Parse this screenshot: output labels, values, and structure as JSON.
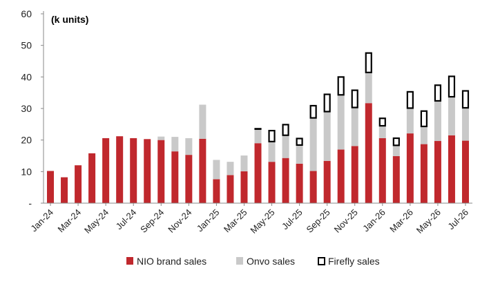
{
  "chart_data": {
    "type": "bar",
    "stacked": true,
    "unit_label": "(k units)",
    "ylim": [
      0,
      60
    ],
    "y_ticks": [
      "-",
      "10",
      "20",
      "30",
      "40",
      "50",
      "60"
    ],
    "grid": false,
    "legend_position": "bottom",
    "categories": [
      "Jan-24",
      "Feb-24",
      "Mar-24",
      "Apr-24",
      "May-24",
      "Jun-24",
      "Jul-24",
      "Aug-24",
      "Sep-24",
      "Oct-24",
      "Nov-24",
      "Dec-24",
      "Jan-25",
      "Feb-25",
      "Mar-25",
      "Apr-25",
      "May-25",
      "Jun-25",
      "Jul-25",
      "Aug-25",
      "Sep-25",
      "Oct-25",
      "Nov-25",
      "Dec-25",
      "Jan-26",
      "Feb-26",
      "Mar-26",
      "Apr-26",
      "May-26",
      "Jun-26",
      "Jul-26"
    ],
    "x_tick_labels": [
      "Jan-24",
      "",
      "Mar-24",
      "",
      "May-24",
      "",
      "Jul-24",
      "",
      "Sep-24",
      "",
      "Nov-24",
      "",
      "Jan-25",
      "",
      "Mar-25",
      "",
      "May-25",
      "",
      "Jul-25",
      "",
      "Sep-25",
      "",
      "Nov-25",
      "",
      "Jan-26",
      "",
      "Mar-26",
      "",
      "May-26",
      "",
      "Jul-26"
    ],
    "series": [
      {
        "name": "NIO brand sales",
        "color": "#c0282d",
        "style": "solid",
        "values": [
          10.2,
          8.2,
          12.0,
          15.8,
          20.6,
          21.2,
          20.6,
          20.3,
          20.0,
          16.4,
          15.3,
          20.4,
          7.6,
          8.9,
          10.1,
          19.0,
          13.1,
          14.3,
          12.5,
          10.2,
          13.4,
          17.0,
          18.1,
          31.7,
          20.6,
          14.9,
          22.1,
          18.7,
          19.7,
          21.5,
          19.8
        ]
      },
      {
        "name": "Onvo sales",
        "color": "#c9c9c9",
        "style": "solid",
        "values": [
          0,
          0,
          0,
          0,
          0,
          0,
          0,
          0,
          1.1,
          4.6,
          5.3,
          10.8,
          6.1,
          4.2,
          5.0,
          4.4,
          6.2,
          7.0,
          5.7,
          16.6,
          15.4,
          17.1,
          12.0,
          9.5,
          3.7,
          3.2,
          7.8,
          5.4,
          12.5,
          12.0,
          10.2
        ]
      },
      {
        "name": "Firefly sales",
        "color": "#000000",
        "style": "outline",
        "values": [
          0,
          0,
          0,
          0,
          0,
          0,
          0,
          0,
          0,
          0,
          0,
          0,
          0,
          0,
          0,
          0.4,
          3.9,
          3.8,
          2.5,
          4.3,
          5.9,
          6.1,
          5.9,
          6.6,
          2.8,
          2.7,
          5.6,
          5.3,
          5.4,
          6.9,
          5.8
        ]
      }
    ]
  }
}
